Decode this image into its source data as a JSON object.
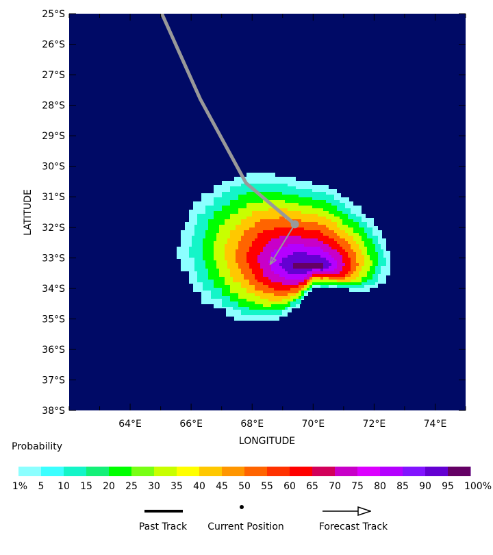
{
  "map": {
    "lon_range": [
      62,
      75
    ],
    "lat_range": [
      -38,
      -25
    ],
    "background_color": "#000a66",
    "lon_ticks": [
      {
        "value": 64,
        "label": "64°E"
      },
      {
        "value": 66,
        "label": "66°E"
      },
      {
        "value": 68,
        "label": "68°E"
      },
      {
        "value": 70,
        "label": "70°E"
      },
      {
        "value": 72,
        "label": "72°E"
      },
      {
        "value": 74,
        "label": "74°E"
      }
    ],
    "lat_ticks": [
      {
        "value": -25,
        "label": "25°S"
      },
      {
        "value": -26,
        "label": "26°S"
      },
      {
        "value": -27,
        "label": "27°S"
      },
      {
        "value": -28,
        "label": "28°S"
      },
      {
        "value": -29,
        "label": "29°S"
      },
      {
        "value": -30,
        "label": "30°S"
      },
      {
        "value": -31,
        "label": "31°S"
      },
      {
        "value": -32,
        "label": "32°S"
      },
      {
        "value": -33,
        "label": "33°S"
      },
      {
        "value": -34,
        "label": "34°S"
      },
      {
        "value": -35,
        "label": "35°S"
      },
      {
        "value": -36,
        "label": "36°S"
      },
      {
        "value": -37,
        "label": "37°S"
      },
      {
        "value": -38,
        "label": "38°S"
      }
    ],
    "xlabel": "LONGITUDE",
    "ylabel": "LATITUDE",
    "past_track": [
      [
        64.95,
        -24.8
      ],
      [
        66.3,
        -27.8
      ],
      [
        67.8,
        -30.55
      ],
      [
        69.4,
        -31.9
      ]
    ],
    "current_position": [
      69.4,
      -31.9
    ],
    "forecast_track": [
      [
        69.4,
        -31.9
      ],
      [
        68.6,
        -33.2
      ]
    ],
    "track_color": "#999999",
    "probability_center": [
      69.7,
      -33.0
    ],
    "probability_levels": [
      1,
      10,
      20,
      30,
      40,
      50,
      60,
      70,
      80,
      90,
      95
    ]
  },
  "legend": {
    "title": "Probability",
    "bins": [
      {
        "color": "#8cffff",
        "label": "1%"
      },
      {
        "color": "#3cffff",
        "label": "5"
      },
      {
        "color": "#14f5c8",
        "label": "10"
      },
      {
        "color": "#14f078",
        "label": "15"
      },
      {
        "color": "#00ff00",
        "label": "20"
      },
      {
        "color": "#78ff14",
        "label": "25"
      },
      {
        "color": "#c8ff00",
        "label": "30"
      },
      {
        "color": "#ffff00",
        "label": "35"
      },
      {
        "color": "#ffc800",
        "label": "40"
      },
      {
        "color": "#ff9600",
        "label": "45"
      },
      {
        "color": "#ff6400",
        "label": "50"
      },
      {
        "color": "#ff3200",
        "label": "55"
      },
      {
        "color": "#ff0000",
        "label": "60"
      },
      {
        "color": "#d2005a",
        "label": "65"
      },
      {
        "color": "#c800c8",
        "label": "70"
      },
      {
        "color": "#dc00ff",
        "label": "75"
      },
      {
        "color": "#b400ff",
        "label": "80"
      },
      {
        "color": "#8214ff",
        "label": "85"
      },
      {
        "color": "#6400d2",
        "label": "90"
      },
      {
        "color": "#5a0096",
        "label": "95"
      },
      {
        "color": "#640064",
        "label": "100%"
      }
    ],
    "keys": {
      "past_track": "Past Track",
      "current_position": "Current Position",
      "forecast_track": "Forecast Track"
    }
  }
}
